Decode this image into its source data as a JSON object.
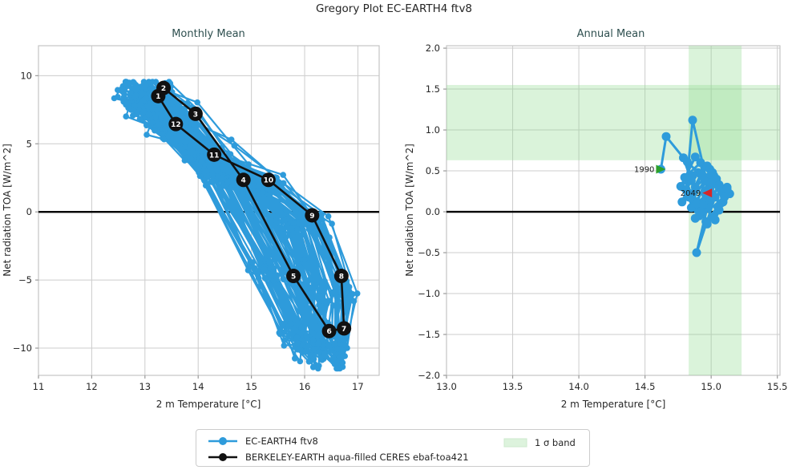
{
  "figure": {
    "title": "Gregory Plot EC-EARTH4 ftv8"
  },
  "legend": {
    "items": [
      {
        "label": "EC-EARTH4 ftv8",
        "color": "#2E9BDB",
        "marker": "line-circle"
      },
      {
        "label": "BERKELEY-EARTH aqua-filled CERES ebaf-toa421",
        "color": "#111111",
        "marker": "line-circle"
      },
      {
        "label": "1 σ band",
        "color": "#ddf3dd",
        "marker": "patch"
      }
    ]
  },
  "chart_data": [
    {
      "type": "line",
      "title": "Monthly Mean",
      "xlabel": "2 m Temperature [°C]",
      "ylabel": "Net radiation TOA [W/m^2]",
      "xlim": [
        11,
        17.4
      ],
      "ylim": [
        -12,
        12.2
      ],
      "xticks": [
        11,
        12,
        13,
        14,
        15,
        16,
        17
      ],
      "xtick_labels": [
        "11",
        "12",
        "13",
        "14",
        "15",
        "16",
        "17"
      ],
      "yticks": [
        -10,
        -5,
        0,
        5,
        10
      ],
      "ytick_labels": [
        "−10",
        "−5",
        "0",
        "5",
        "10"
      ],
      "grid": true,
      "zero_line": 0,
      "series": [
        {
          "name": "EC-EARTH4 ftv8",
          "kind": "monthly-cloud",
          "color": "#2E9BDB",
          "n_years": 60,
          "base_cycle_months": [
            "1",
            "2",
            "3",
            "4",
            "5",
            "6",
            "7",
            "8",
            "9",
            "10",
            "11",
            "12"
          ],
          "base_cycle_x": [
            12.95,
            13.05,
            13.55,
            14.5,
            15.45,
            16.0,
            16.35,
            16.45,
            15.95,
            15.1,
            14.15,
            13.4
          ],
          "base_cycle_y": [
            8.3,
            8.8,
            6.9,
            2.5,
            -4.3,
            -9.2,
            -10.4,
            -6.0,
            -0.9,
            2.0,
            4.1,
            6.2
          ],
          "year_jitter": [
            0.45,
            0.6
          ],
          "month_jitter": [
            0.12,
            0.45
          ]
        },
        {
          "name": "BERKELEY-EARTH aqua-filled CERES ebaf-toa421",
          "kind": "labeled-cycle",
          "color": "#111111",
          "labels": [
            "1",
            "2",
            "3",
            "4",
            "5",
            "6",
            "7",
            "8",
            "9",
            "10",
            "11",
            "12"
          ],
          "x": [
            13.25,
            13.35,
            13.95,
            14.85,
            15.79,
            16.46,
            16.74,
            16.69,
            16.14,
            15.32,
            14.3,
            13.58
          ],
          "y": [
            8.5,
            9.1,
            7.2,
            2.35,
            -4.7,
            -8.75,
            -8.55,
            -4.7,
            -0.25,
            2.35,
            4.2,
            6.45
          ]
        }
      ]
    },
    {
      "type": "line",
      "title": "Annual Mean",
      "xlabel": "2 m Temperature [°C]",
      "ylabel": "Net radiation TOA [W/m^2]",
      "xlim": [
        13,
        15.52
      ],
      "ylim": [
        -2,
        2.03
      ],
      "xticks": [
        13.0,
        13.5,
        14.0,
        14.5,
        15.0,
        15.5
      ],
      "xtick_labels": [
        "13.0",
        "13.5",
        "14.0",
        "14.5",
        "15.0",
        "15.5"
      ],
      "yticks": [
        -2.0,
        -1.5,
        -1.0,
        -0.5,
        0.0,
        0.5,
        1.0,
        1.5,
        2.0
      ],
      "ytick_labels": [
        "−2.0",
        "−1.5",
        "−1.0",
        "−0.5",
        "0.0",
        "0.5",
        "1.0",
        "1.5",
        "2.0"
      ],
      "grid": true,
      "zero_line": 0,
      "bands": {
        "label": "1 σ band",
        "color": "#8fdc8f",
        "opacity": 0.33,
        "horizontal": [
          0.63,
          1.55
        ],
        "vertical": [
          14.83,
          15.23
        ]
      },
      "series": [
        {
          "name": "EC-EARTH4 ftv8",
          "kind": "annual-walk",
          "color": "#2E9BDB",
          "start_year": 1990,
          "end_year": 2049,
          "x": [
            14.62,
            14.66,
            14.79,
            14.85,
            14.82,
            14.9,
            14.77,
            14.88,
            14.95,
            14.85,
            14.8,
            14.92,
            14.98,
            14.87,
            14.81,
            14.86,
            14.96,
            14.88,
            14.78,
            14.86,
            14.97,
            14.83,
            14.9,
            14.99,
            14.92,
            14.85,
            14.96,
            15.04,
            14.94,
            14.88,
            14.98,
            15.06,
            14.93,
            14.86,
            14.95,
            15.03,
            14.89,
            14.97,
            15.08,
            14.99,
            14.89,
            14.96,
            15.05,
            15.12,
            15.0,
            14.91,
            15.02,
            15.09,
            14.97,
            15.06,
            15.14,
            15.01,
            14.94,
            15.03,
            15.1,
            15.0,
            14.92,
            15.07,
            15.12,
            14.97
          ],
          "y": [
            0.52,
            0.92,
            0.66,
            0.38,
            0.61,
            0.48,
            0.31,
            0.67,
            0.55,
            0.22,
            0.42,
            0.6,
            0.35,
            0.1,
            0.27,
            1.12,
            0.42,
            0.3,
            0.12,
            0.44,
            0.56,
            0.18,
            0.02,
            0.28,
            0.46,
            0.05,
            0.2,
            0.4,
            0.12,
            -0.08,
            0.08,
            0.33,
            -0.02,
            0.15,
            0.38,
            0.18,
            -0.5,
            0.05,
            0.25,
            0.52,
            0.1,
            -0.12,
            0.06,
            0.3,
            0.16,
            -0.05,
            0.44,
            0.12,
            -0.15,
            0.02,
            0.22,
            0.48,
            0.08,
            -0.1,
            0.18,
            0.35,
            0.0,
            0.1,
            0.28,
            0.23
          ]
        }
      ],
      "annotations": [
        {
          "text": "1990",
          "marker": "right-triangle",
          "color": "#2ca02c",
          "x": 14.62,
          "y": 0.52
        },
        {
          "text": "2049",
          "marker": "left-triangle",
          "color": "#d62728",
          "x": 14.97,
          "y": 0.23
        }
      ]
    }
  ]
}
